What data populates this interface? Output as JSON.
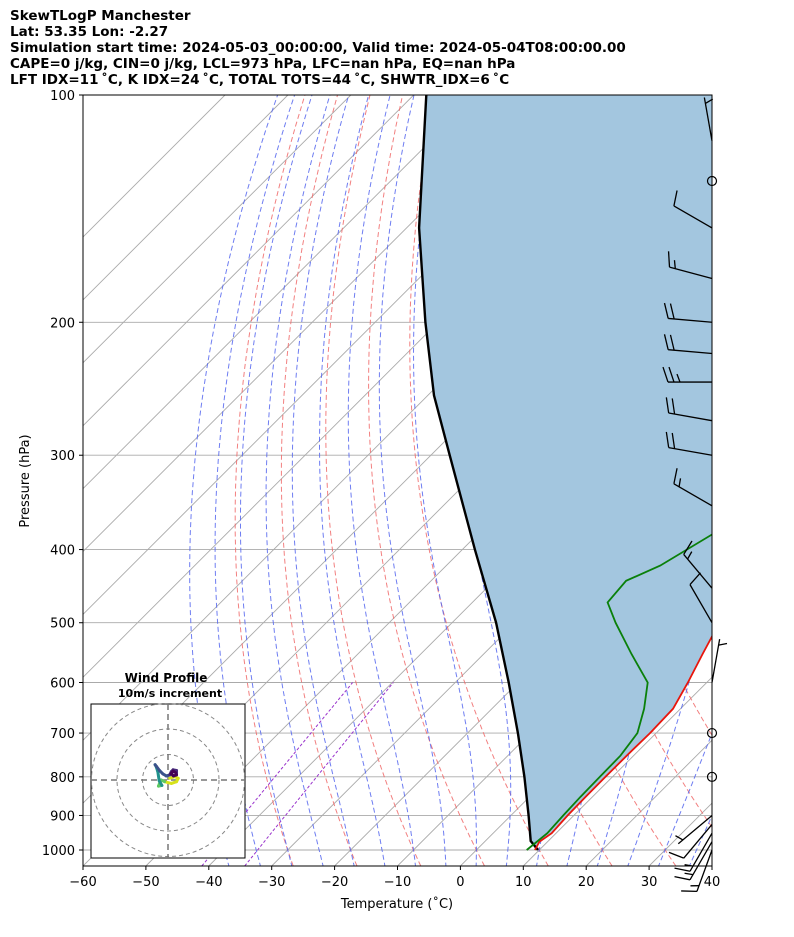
{
  "header": {
    "line1": "SkewTLogP Manchester",
    "line2": "Lat: 53.35   Lon: -2.27",
    "line3": "Simulation start time: 2024-05-03_00:00:00, Valid time: 2024-05-04T08:00:00.00",
    "line4": "CAPE=0 j/kg, CIN=0 j/kg, LCL=973 hPa, LFC=nan hPa, EQ=nan hPa",
    "line5": "LFT IDX=11 ˚C, K IDX=24 ˚C, TOTAL TOTS=44 ˚C, SHWTR_IDX=6 ˚C"
  },
  "chart_data": {
    "type": "skew-t log-p",
    "xlabel": "Temperature (˚C)",
    "ylabel": "Pressure (hPa)",
    "xlim": [
      -60,
      40
    ],
    "ylim": [
      1050,
      100
    ],
    "x_ticks": [
      "−60",
      "−50",
      "−40",
      "−30",
      "−20",
      "−10",
      "0",
      "10",
      "20",
      "30",
      "40"
    ],
    "y_ticks": [
      "100",
      "200",
      "300",
      "400",
      "500",
      "600",
      "700",
      "800",
      "900",
      "1000"
    ],
    "colors": {
      "temperature": "#e8160c",
      "dewpoint": "#0a800a",
      "parcel": "#000000",
      "cape_shading": "#a3c6df",
      "dry_adiabats": "#f06a6a",
      "moist_adiabats": "#5566ee",
      "mixing_ratio": "#9933cc",
      "isotherms": "#aaaaaa"
    },
    "temperature_profile": [
      [
        1000,
        9.3
      ],
      [
        975,
        8.7
      ],
      [
        950,
        9.3
      ],
      [
        900,
        9.0
      ],
      [
        850,
        8.9
      ],
      [
        800,
        8.9
      ],
      [
        750,
        8.9
      ],
      [
        700,
        9.0
      ],
      [
        650,
        8.8
      ],
      [
        600,
        7.0
      ],
      [
        550,
        4.8
      ],
      [
        500,
        2.5
      ],
      [
        450,
        0.5
      ],
      [
        400,
        -1.2
      ],
      [
        350,
        -5.8
      ],
      [
        300,
        -10.3
      ],
      [
        275,
        -11.7
      ],
      [
        250,
        -11.8
      ],
      [
        230,
        -12.3
      ],
      [
        210,
        -14.5
      ],
      [
        190,
        -14.5
      ],
      [
        160,
        -13.4
      ],
      [
        140,
        -14.5
      ],
      [
        120,
        -18.0
      ],
      [
        110,
        -19.0
      ],
      [
        100,
        -21.5
      ]
    ],
    "dewpoint_profile": [
      [
        1000,
        8.0
      ],
      [
        950,
        8.6
      ],
      [
        900,
        8.3
      ],
      [
        850,
        8.1
      ],
      [
        800,
        8.0
      ],
      [
        750,
        7.9
      ],
      [
        700,
        7.0
      ],
      [
        650,
        4.2
      ],
      [
        600,
        0.6
      ],
      [
        550,
        -6.5
      ],
      [
        500,
        -14.0
      ],
      [
        470,
        -18.5
      ],
      [
        440,
        -19.0
      ],
      [
        420,
        -16.0
      ],
      [
        380,
        -12.5
      ],
      [
        340,
        -17.8
      ],
      [
        300,
        -21.2
      ],
      [
        280,
        -24.6
      ],
      [
        270,
        -24.6
      ],
      [
        250,
        -25.5
      ],
      [
        220,
        -28.5
      ],
      [
        200,
        -27.0
      ],
      [
        180,
        -32.0
      ],
      [
        165,
        -36.5
      ],
      [
        140,
        -36.5
      ],
      [
        120,
        -37.0
      ],
      [
        100,
        -38.5
      ]
    ],
    "parcel_profile": [
      [
        1000,
        9.8
      ],
      [
        973,
        7.2
      ],
      [
        900,
        2.8
      ],
      [
        800,
        -4.0
      ],
      [
        700,
        -12.0
      ],
      [
        600,
        -21.5
      ],
      [
        500,
        -33.0
      ],
      [
        400,
        -48.0
      ],
      [
        300,
        -67.0
      ],
      [
        250,
        -79.0
      ],
      [
        200,
        -92.0
      ],
      [
        150,
        -108.0
      ],
      [
        100,
        -128.0
      ]
    ],
    "wind_barbs": [
      {
        "p": 1000,
        "speed_kt": 15,
        "dir_deg": 200
      },
      {
        "p": 975,
        "speed_kt": 15,
        "dir_deg": 210
      },
      {
        "p": 950,
        "speed_kt": 15,
        "dir_deg": 210
      },
      {
        "p": 925,
        "speed_kt": 10,
        "dir_deg": 220
      },
      {
        "p": 900,
        "speed_kt": 5,
        "dir_deg": 230
      },
      {
        "p": 800,
        "speed_kt": 0,
        "dir_deg": 0
      },
      {
        "p": 700,
        "speed_kt": 0,
        "dir_deg": 0
      },
      {
        "p": 600,
        "speed_kt": 5,
        "dir_deg": 10
      },
      {
        "p": 500,
        "speed_kt": 10,
        "dir_deg": 330
      },
      {
        "p": 450,
        "speed_kt": 15,
        "dir_deg": 320
      },
      {
        "p": 350,
        "speed_kt": 15,
        "dir_deg": 300
      },
      {
        "p": 300,
        "speed_kt": 20,
        "dir_deg": 280
      },
      {
        "p": 270,
        "speed_kt": 20,
        "dir_deg": 280
      },
      {
        "p": 240,
        "speed_kt": 25,
        "dir_deg": 270
      },
      {
        "p": 220,
        "speed_kt": 20,
        "dir_deg": 275
      },
      {
        "p": 200,
        "speed_kt": 20,
        "dir_deg": 275
      },
      {
        "p": 175,
        "speed_kt": 15,
        "dir_deg": 285
      },
      {
        "p": 150,
        "speed_kt": 10,
        "dir_deg": 300
      },
      {
        "p": 130,
        "speed_kt": 0,
        "dir_deg": 0
      },
      {
        "p": 115,
        "speed_kt": 5,
        "dir_deg": 350
      }
    ],
    "hodograph": {
      "title": "Wind Profile",
      "subtitle": "10m/s increment",
      "ring_spacing_ms": 10,
      "points": [
        [
          0.5,
          0.5
        ],
        [
          2.0,
          1.0
        ],
        [
          3.0,
          0.5
        ],
        [
          2.5,
          -0.5
        ],
        [
          1.0,
          -1.0
        ],
        [
          -1.0,
          -0.5
        ],
        [
          -2.0,
          0.0
        ],
        [
          -2.5,
          -1.0
        ],
        [
          -2.8,
          -1.8
        ],
        [
          -1.8,
          -1.6
        ],
        [
          -2.6,
          -0.2
        ],
        [
          -3.0,
          2.5
        ],
        [
          -3.5,
          4.0
        ],
        [
          -3.8,
          4.5
        ],
        [
          -3.4,
          4.0
        ],
        [
          -2.5,
          2.8
        ],
        [
          -1.5,
          1.8
        ],
        [
          -0.5,
          1.2
        ],
        [
          0.5,
          1.5
        ],
        [
          1.0,
          2.5
        ],
        [
          1.5,
          3.0
        ],
        [
          2.5,
          2.8
        ],
        [
          2.5,
          1.5
        ],
        [
          1.6,
          1.2
        ],
        [
          0.9,
          1.9
        ],
        [
          1.5,
          2.6
        ],
        [
          2.2,
          2.2
        ]
      ]
    }
  }
}
